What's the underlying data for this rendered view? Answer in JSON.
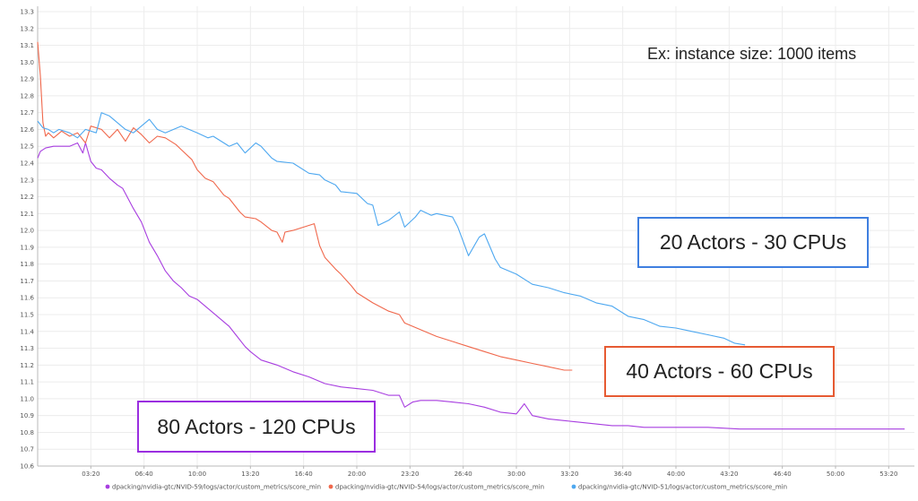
{
  "chart_data": {
    "type": "line",
    "title": "",
    "xlabel": "",
    "ylabel": "",
    "ylim": [
      10.6,
      13.3
    ],
    "y_ticks": [
      "13.3",
      "13.2",
      "13.1",
      "13.0",
      "12.9",
      "12.8",
      "12.7",
      "12.6",
      "12.5",
      "12.4",
      "12.3",
      "12.2",
      "12.1",
      "12.0",
      "11.9",
      "11.8",
      "11.7",
      "11.6",
      "11.5",
      "11.4",
      "11.3",
      "11.2",
      "11.1",
      "11.0",
      "10.9",
      "10.8",
      "10.7",
      "10.6"
    ],
    "x_unit": "elapsed mm:ss",
    "x_ticks": [
      "03:20",
      "06:40",
      "10:00",
      "13:20",
      "16:40",
      "20:00",
      "23:20",
      "26:40",
      "30:00",
      "33:20",
      "36:40",
      "40:00",
      "43:20",
      "46:40",
      "50:00",
      "53:20"
    ],
    "grid": true,
    "legend_position": "bottom",
    "series": [
      {
        "name": "dpacking/nvidia-gtc/NVID-59/logs/actor/custom_metrics/score_min",
        "color": "#a83ee0",
        "x": [
          "00:00",
          "00:10",
          "00:30",
          "01:00",
          "01:30",
          "02:00",
          "02:30",
          "02:50",
          "03:00",
          "03:20",
          "03:40",
          "04:00",
          "04:30",
          "05:00",
          "05:20",
          "06:00",
          "06:30",
          "07:00",
          "07:30",
          "08:00",
          "08:30",
          "09:00",
          "09:30",
          "10:00",
          "11:00",
          "12:00",
          "12:30",
          "13:00",
          "13:20",
          "14:00",
          "15:00",
          "16:00",
          "17:00",
          "18:00",
          "19:00",
          "20:00",
          "21:00",
          "22:00",
          "22:40",
          "23:00",
          "23:30",
          "24:00",
          "25:00",
          "26:00",
          "27:00",
          "28:00",
          "29:00",
          "30:00",
          "30:30",
          "31:00",
          "32:00",
          "33:00",
          "34:00",
          "35:00",
          "36:00",
          "37:00",
          "38:00",
          "40:00",
          "42:00",
          "44:00",
          "46:00",
          "48:00",
          "50:00",
          "52:00",
          "53:20",
          "54:20"
        ],
        "values": [
          12.43,
          12.47,
          12.49,
          12.5,
          12.5,
          12.5,
          12.52,
          12.46,
          12.52,
          12.41,
          12.37,
          12.36,
          12.31,
          12.27,
          12.25,
          12.13,
          12.05,
          11.93,
          11.85,
          11.76,
          11.7,
          11.66,
          11.61,
          11.59,
          11.51,
          11.43,
          11.37,
          11.31,
          11.28,
          11.23,
          11.2,
          11.16,
          11.13,
          11.09,
          11.07,
          11.06,
          11.05,
          11.02,
          11.02,
          10.95,
          10.98,
          10.99,
          10.99,
          10.98,
          10.97,
          10.95,
          10.92,
          10.91,
          10.97,
          10.9,
          10.88,
          10.87,
          10.86,
          10.85,
          10.84,
          10.84,
          10.83,
          10.83,
          10.83,
          10.82,
          10.82,
          10.82,
          10.82,
          10.82,
          10.82,
          10.82
        ]
      },
      {
        "name": "dpacking/nvidia-gtc/NVID-54/logs/actor/custom_metrics/score_min",
        "color": "#f0684c",
        "x": [
          "00:00",
          "00:10",
          "00:20",
          "00:30",
          "00:40",
          "01:00",
          "01:30",
          "02:00",
          "02:30",
          "03:00",
          "03:20",
          "04:00",
          "04:30",
          "05:00",
          "05:30",
          "06:00",
          "06:30",
          "07:00",
          "07:30",
          "08:00",
          "08:40",
          "09:00",
          "09:40",
          "10:00",
          "10:30",
          "11:00",
          "11:40",
          "12:00",
          "12:40",
          "13:00",
          "13:40",
          "14:00",
          "14:40",
          "15:00",
          "15:20",
          "15:30",
          "16:00",
          "16:40",
          "17:00",
          "17:20",
          "17:40",
          "18:00",
          "18:40",
          "19:00",
          "19:40",
          "20:00",
          "21:00",
          "22:00",
          "22:40",
          "23:00",
          "24:00",
          "25:00",
          "26:00",
          "27:00",
          "28:00",
          "29:00",
          "30:00",
          "31:00",
          "32:00",
          "33:00",
          "33:30"
        ],
        "values": [
          13.12,
          12.92,
          12.64,
          12.56,
          12.58,
          12.55,
          12.59,
          12.56,
          12.58,
          12.52,
          12.62,
          12.6,
          12.55,
          12.6,
          12.53,
          12.61,
          12.57,
          12.52,
          12.56,
          12.55,
          12.51,
          12.48,
          12.42,
          12.36,
          12.31,
          12.29,
          12.21,
          12.19,
          12.11,
          12.08,
          12.07,
          12.05,
          12.0,
          11.99,
          11.93,
          11.99,
          12.0,
          12.02,
          12.03,
          12.04,
          11.91,
          11.84,
          11.77,
          11.74,
          11.67,
          11.63,
          11.57,
          11.52,
          11.5,
          11.45,
          11.41,
          11.37,
          11.34,
          11.31,
          11.28,
          11.25,
          11.23,
          11.21,
          11.19,
          11.17,
          11.17
        ]
      },
      {
        "name": "dpacking/nvidia-gtc/NVID-51/logs/actor/custom_metrics/score_min",
        "color": "#4ea8f0",
        "x": [
          "00:00",
          "00:20",
          "00:40",
          "01:00",
          "01:20",
          "02:00",
          "02:30",
          "03:00",
          "03:40",
          "04:00",
          "04:30",
          "05:00",
          "05:30",
          "06:00",
          "06:30",
          "07:00",
          "07:30",
          "08:00",
          "09:00",
          "10:00",
          "10:40",
          "11:00",
          "12:00",
          "12:30",
          "13:00",
          "13:40",
          "14:00",
          "14:40",
          "15:00",
          "16:00",
          "17:00",
          "17:40",
          "18:00",
          "18:40",
          "19:00",
          "20:00",
          "20:40",
          "21:00",
          "21:20",
          "22:00",
          "22:40",
          "23:00",
          "23:40",
          "24:00",
          "24:40",
          "25:00",
          "26:00",
          "26:20",
          "27:00",
          "27:40",
          "28:00",
          "28:40",
          "29:00",
          "30:00",
          "31:00",
          "32:00",
          "33:00",
          "34:00",
          "35:00",
          "36:00",
          "37:00",
          "38:00",
          "39:00",
          "40:00",
          "41:00",
          "42:00",
          "43:00",
          "43:40",
          "44:20"
        ],
        "values": [
          12.65,
          12.61,
          12.6,
          12.58,
          12.6,
          12.58,
          12.55,
          12.6,
          12.58,
          12.7,
          12.68,
          12.64,
          12.6,
          12.58,
          12.62,
          12.66,
          12.6,
          12.58,
          12.62,
          12.58,
          12.55,
          12.56,
          12.5,
          12.52,
          12.46,
          12.52,
          12.5,
          12.43,
          12.41,
          12.4,
          12.34,
          12.33,
          12.3,
          12.27,
          12.23,
          12.22,
          12.16,
          12.15,
          12.03,
          12.06,
          12.11,
          12.02,
          12.08,
          12.12,
          12.09,
          12.1,
          12.08,
          12.02,
          11.85,
          11.96,
          11.98,
          11.83,
          11.78,
          11.74,
          11.68,
          11.66,
          11.63,
          11.61,
          11.57,
          11.55,
          11.49,
          11.47,
          11.43,
          11.42,
          11.4,
          11.38,
          11.36,
          11.33,
          11.32
        ]
      }
    ]
  },
  "annotations": {
    "note": "Ex: instance size: 1000 items",
    "box_20": {
      "label": "20 Actors - 30 CPUs",
      "color": "#3f7fe0"
    },
    "box_40": {
      "label": "40 Actors - 60 CPUs",
      "color": "#e65a32"
    },
    "box_80": {
      "label": "80 Actors - 120 CPUs",
      "color": "#9a2ee0"
    }
  }
}
